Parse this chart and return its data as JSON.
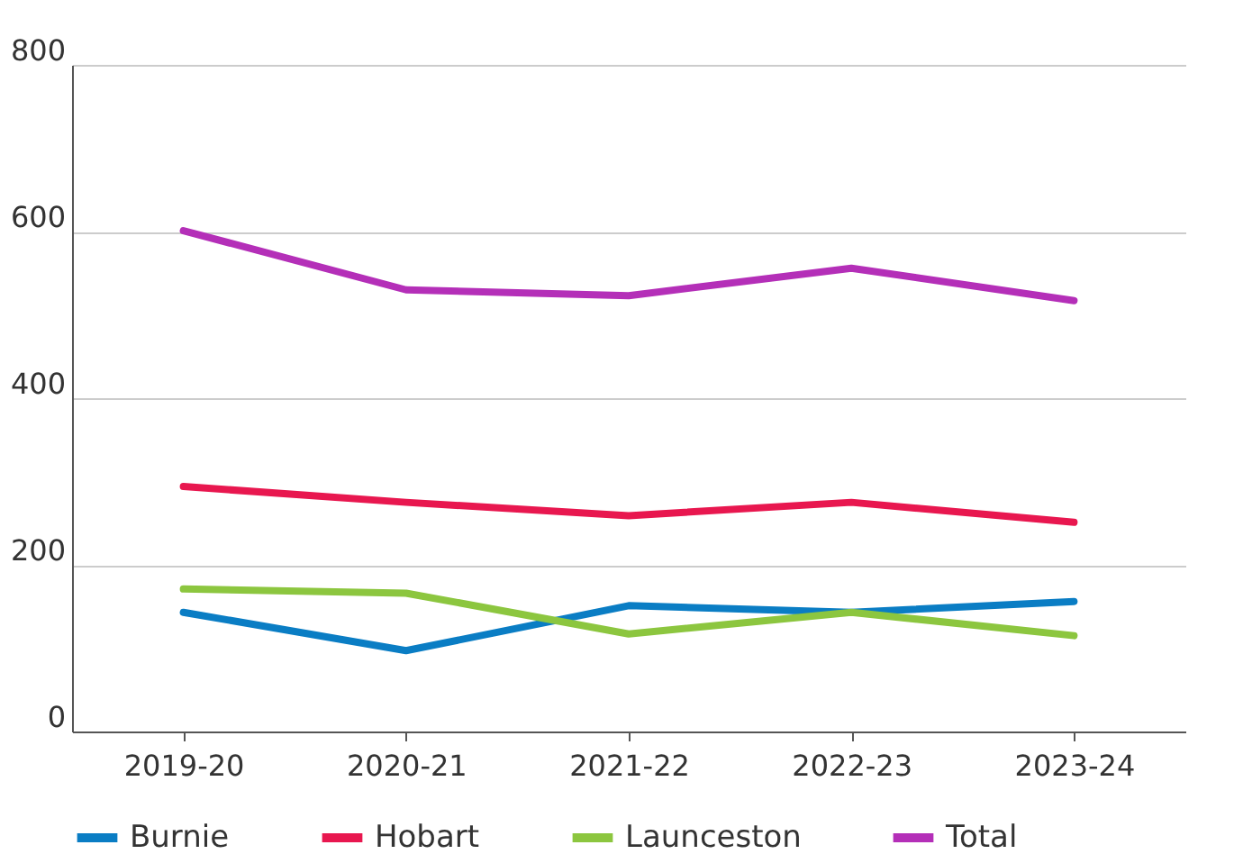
{
  "chart_data": {
    "type": "line",
    "categories": [
      "2019-20",
      "2020-21",
      "2021-22",
      "2022-23",
      "2023-24"
    ],
    "series": [
      {
        "name": "Burnie",
        "color": "#0a7dc4",
        "values": [
          143,
          97,
          151,
          143,
          156
        ]
      },
      {
        "name": "Hobart",
        "color": "#e8174f",
        "values": [
          294,
          275,
          259,
          275,
          251
        ]
      },
      {
        "name": "Launceston",
        "color": "#8cc63f",
        "values": [
          171,
          166,
          117,
          143,
          115
        ]
      },
      {
        "name": "Total",
        "color": "#b42fb8",
        "values": [
          601,
          530,
          523,
          556,
          517
        ]
      }
    ],
    "ylim": [
      0,
      800
    ],
    "yticks": [
      0,
      200,
      400,
      600,
      800
    ],
    "grid": "y",
    "legend": "bottom",
    "marker": "none",
    "line_style": "solid"
  }
}
